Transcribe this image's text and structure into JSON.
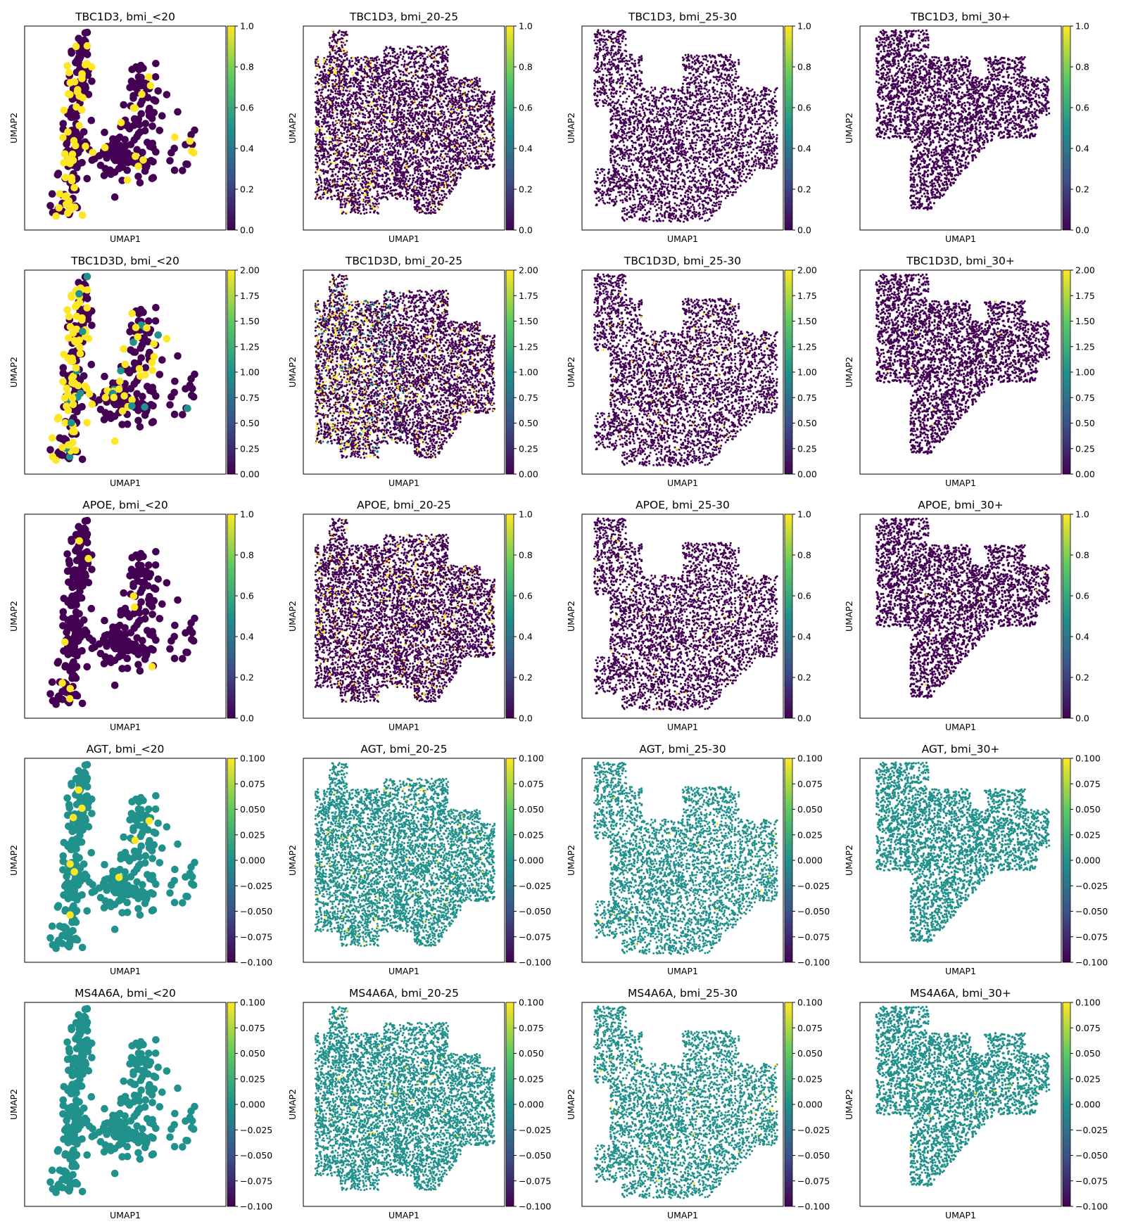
{
  "chart_data": {
    "type": "scatter",
    "layout": "grid",
    "rows": [
      "TBC1D3",
      "TBC1D3D",
      "APOE",
      "AGT",
      "MS4A6A"
    ],
    "columns": [
      "bmi_<20",
      "bmi_20-25",
      "bmi_25-30",
      "bmi_30+"
    ],
    "xlabel": "UMAP1",
    "ylabel": "UMAP2",
    "colormap": "viridis",
    "colormap_stops": [
      "#440154",
      "#3b528b",
      "#21918c",
      "#5ec962",
      "#fde725"
    ],
    "colorbar_ranges": [
      [
        0,
        1
      ],
      [
        0,
        2
      ],
      [
        0,
        1
      ],
      [
        -0.1,
        0.1
      ],
      [
        -0.1,
        0.1
      ]
    ],
    "colorbar_ticks": [
      [
        "0.0",
        "0.2",
        "0.4",
        "0.6",
        "0.8",
        "1.0"
      ],
      [
        "0.00",
        "0.25",
        "0.50",
        "0.75",
        "1.00",
        "1.25",
        "1.50",
        "1.75",
        "2.00"
      ],
      [
        "0.0",
        "0.2",
        "0.4",
        "0.6",
        "0.8",
        "1.0"
      ],
      [
        "−0.100",
        "−0.075",
        "−0.050",
        "−0.025",
        "0.000",
        "0.025",
        "0.050",
        "0.075",
        "0.100"
      ],
      [
        "−0.100",
        "−0.075",
        "−0.050",
        "−0.025",
        "0.000",
        "0.025",
        "0.050",
        "0.075",
        "0.100"
      ]
    ],
    "background_level": [
      0,
      0,
      0,
      0.5,
      0.5
    ],
    "high_fraction": [
      [
        0.28,
        0.07,
        0.004,
        0.0
      ],
      [
        0.35,
        0.12,
        0.03,
        0.004
      ],
      [
        0.03,
        0.04,
        0.01,
        0.004
      ],
      [
        0.03,
        0.01,
        0.005,
        0.0
      ],
      [
        0.0,
        0.006,
        0.006,
        0.003
      ]
    ],
    "panels": [
      [
        {
          "title": "TBC1D3, bmi_<20"
        },
        {
          "title": "TBC1D3, bmi_20-25"
        },
        {
          "title": "TBC1D3, bmi_25-30"
        },
        {
          "title": "TBC1D3, bmi_30+"
        }
      ],
      [
        {
          "title": "TBC1D3D, bmi_<20"
        },
        {
          "title": "TBC1D3D, bmi_20-25"
        },
        {
          "title": "TBC1D3D, bmi_25-30"
        },
        {
          "title": "TBC1D3D, bmi_30+"
        }
      ],
      [
        {
          "title": "APOE, bmi_<20"
        },
        {
          "title": "APOE, bmi_20-25"
        },
        {
          "title": "APOE, bmi_25-30"
        },
        {
          "title": "APOE, bmi_30+"
        }
      ],
      [
        {
          "title": "AGT, bmi_<20"
        },
        {
          "title": "AGT, bmi_20-25"
        },
        {
          "title": "AGT, bmi_25-30"
        },
        {
          "title": "AGT, bmi_30+"
        }
      ],
      [
        {
          "title": "MS4A6A, bmi_<20"
        },
        {
          "title": "MS4A6A, bmi_20-25"
        },
        {
          "title": "MS4A6A, bmi_25-30"
        },
        {
          "title": "MS4A6A, bmi_30+"
        }
      ]
    ],
    "grid": false,
    "legend": "colorbar-right"
  }
}
